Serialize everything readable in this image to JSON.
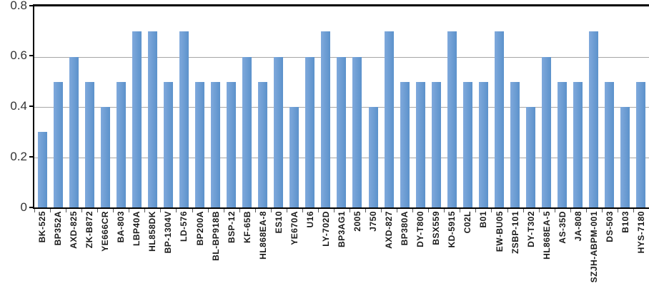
{
  "chart_data": {
    "type": "bar",
    "title": "",
    "xlabel": "",
    "ylabel": "",
    "categories": [
      "BK-525",
      "BP352A",
      "AXD-825",
      "ZK-B872",
      "YE666CR",
      "BA-803",
      "LBP40A",
      "HL858DK",
      "BP-1304V",
      "LD-576",
      "BP200A",
      "BL-BP918B",
      "BSP-12",
      "KF-65B",
      "HL868EA-8",
      "ES10",
      "YE670A",
      "U16",
      "LY-702D",
      "BP3AG1",
      "2005",
      "J750",
      "AXD-827",
      "BP380A",
      "DY-T800",
      "BSX559",
      "KD-5915",
      "C02L",
      "B01",
      "EW-BU05",
      "ZSBP-101",
      "DY-T302",
      "HL868EA-5",
      "AS-35D",
      "JA-808",
      "SZJH-ABPM-001",
      "DS-503",
      "B103",
      "HYS-7180"
    ],
    "values": [
      0.3,
      0.5,
      0.6,
      0.5,
      0.4,
      0.5,
      0.7,
      0.7,
      0.5,
      0.7,
      0.5,
      0.5,
      0.5,
      0.6,
      0.5,
      0.6,
      0.4,
      0.6,
      0.7,
      0.6,
      0.6,
      0.4,
      0.7,
      0.5,
      0.5,
      0.5,
      0.7,
      0.5,
      0.5,
      0.7,
      0.5,
      0.4,
      0.6,
      0.5,
      0.5,
      0.7,
      0.5,
      0.4,
      0.5
    ],
    "ylim": [
      0,
      0.8
    ],
    "y_ticks": [
      {
        "label": "0.8",
        "value": 0.8
      },
      {
        "label": "0.6",
        "value": 0.6
      },
      {
        "label": "0.4",
        "value": 0.4
      },
      {
        "label": "0.2",
        "value": 0.2
      },
      {
        "label": "0",
        "value": 0
      }
    ],
    "grid": true,
    "legend": "none",
    "colors": {
      "bar_fill": "#699BD4",
      "bar_gradient_left": "#7FA9DC",
      "bar_gradient_right": "#5C92CB",
      "gridline": "#A6A6A6",
      "axis": "#000000",
      "tick": "#595959",
      "y_label_text": "#333333",
      "x_label_text": "#1A1A1A"
    }
  }
}
